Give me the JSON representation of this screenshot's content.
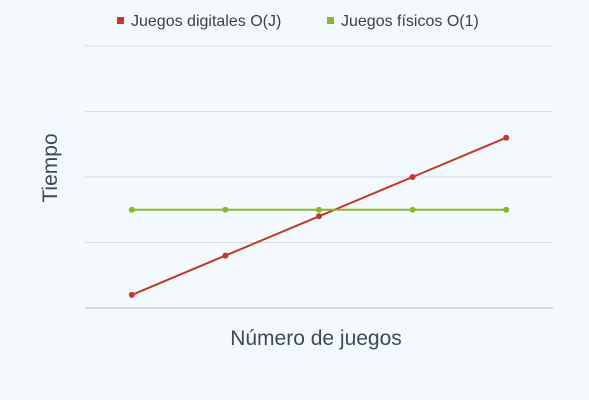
{
  "chart_data": {
    "type": "line",
    "title": "",
    "xlabel": "Número de juegos",
    "ylabel": "Tiempo",
    "x": [
      1,
      2,
      3,
      4,
      5
    ],
    "xlim": [
      0.5,
      5.5
    ],
    "ylim": [
      0,
      4
    ],
    "grid": true,
    "legend_position": "top",
    "series": [
      {
        "name": "Juegos digitales O(J)",
        "color": "#c0392b",
        "values": [
          0.2,
          0.8,
          1.4,
          2.0,
          2.6
        ]
      },
      {
        "name": "Juegos físicos O(1)",
        "color": "#8bb82a",
        "values": [
          1.5,
          1.5,
          1.5,
          1.5,
          1.5
        ]
      }
    ],
    "gridline_values": [
      1,
      2,
      3
    ]
  }
}
